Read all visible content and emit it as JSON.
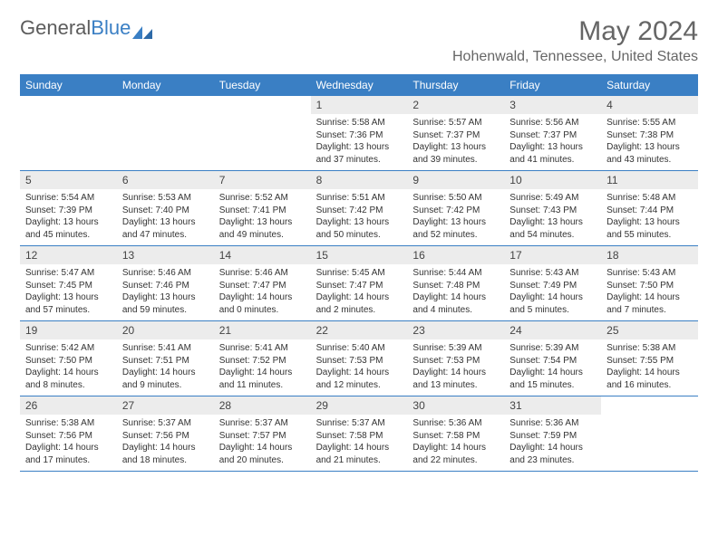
{
  "logo": {
    "text1": "General",
    "text2": "Blue"
  },
  "title": "May 2024",
  "location": "Hohenwald, Tennessee, United States",
  "colors": {
    "accent": "#3a7fc4",
    "daynum_bg": "#ececec",
    "text": "#333333"
  },
  "day_names": [
    "Sunday",
    "Monday",
    "Tuesday",
    "Wednesday",
    "Thursday",
    "Friday",
    "Saturday"
  ],
  "weeks": [
    [
      null,
      null,
      null,
      {
        "n": "1",
        "sr": "Sunrise: 5:58 AM",
        "ss": "Sunset: 7:36 PM",
        "d1": "Daylight: 13 hours",
        "d2": "and 37 minutes."
      },
      {
        "n": "2",
        "sr": "Sunrise: 5:57 AM",
        "ss": "Sunset: 7:37 PM",
        "d1": "Daylight: 13 hours",
        "d2": "and 39 minutes."
      },
      {
        "n": "3",
        "sr": "Sunrise: 5:56 AM",
        "ss": "Sunset: 7:37 PM",
        "d1": "Daylight: 13 hours",
        "d2": "and 41 minutes."
      },
      {
        "n": "4",
        "sr": "Sunrise: 5:55 AM",
        "ss": "Sunset: 7:38 PM",
        "d1": "Daylight: 13 hours",
        "d2": "and 43 minutes."
      }
    ],
    [
      {
        "n": "5",
        "sr": "Sunrise: 5:54 AM",
        "ss": "Sunset: 7:39 PM",
        "d1": "Daylight: 13 hours",
        "d2": "and 45 minutes."
      },
      {
        "n": "6",
        "sr": "Sunrise: 5:53 AM",
        "ss": "Sunset: 7:40 PM",
        "d1": "Daylight: 13 hours",
        "d2": "and 47 minutes."
      },
      {
        "n": "7",
        "sr": "Sunrise: 5:52 AM",
        "ss": "Sunset: 7:41 PM",
        "d1": "Daylight: 13 hours",
        "d2": "and 49 minutes."
      },
      {
        "n": "8",
        "sr": "Sunrise: 5:51 AM",
        "ss": "Sunset: 7:42 PM",
        "d1": "Daylight: 13 hours",
        "d2": "and 50 minutes."
      },
      {
        "n": "9",
        "sr": "Sunrise: 5:50 AM",
        "ss": "Sunset: 7:42 PM",
        "d1": "Daylight: 13 hours",
        "d2": "and 52 minutes."
      },
      {
        "n": "10",
        "sr": "Sunrise: 5:49 AM",
        "ss": "Sunset: 7:43 PM",
        "d1": "Daylight: 13 hours",
        "d2": "and 54 minutes."
      },
      {
        "n": "11",
        "sr": "Sunrise: 5:48 AM",
        "ss": "Sunset: 7:44 PM",
        "d1": "Daylight: 13 hours",
        "d2": "and 55 minutes."
      }
    ],
    [
      {
        "n": "12",
        "sr": "Sunrise: 5:47 AM",
        "ss": "Sunset: 7:45 PM",
        "d1": "Daylight: 13 hours",
        "d2": "and 57 minutes."
      },
      {
        "n": "13",
        "sr": "Sunrise: 5:46 AM",
        "ss": "Sunset: 7:46 PM",
        "d1": "Daylight: 13 hours",
        "d2": "and 59 minutes."
      },
      {
        "n": "14",
        "sr": "Sunrise: 5:46 AM",
        "ss": "Sunset: 7:47 PM",
        "d1": "Daylight: 14 hours",
        "d2": "and 0 minutes."
      },
      {
        "n": "15",
        "sr": "Sunrise: 5:45 AM",
        "ss": "Sunset: 7:47 PM",
        "d1": "Daylight: 14 hours",
        "d2": "and 2 minutes."
      },
      {
        "n": "16",
        "sr": "Sunrise: 5:44 AM",
        "ss": "Sunset: 7:48 PM",
        "d1": "Daylight: 14 hours",
        "d2": "and 4 minutes."
      },
      {
        "n": "17",
        "sr": "Sunrise: 5:43 AM",
        "ss": "Sunset: 7:49 PM",
        "d1": "Daylight: 14 hours",
        "d2": "and 5 minutes."
      },
      {
        "n": "18",
        "sr": "Sunrise: 5:43 AM",
        "ss": "Sunset: 7:50 PM",
        "d1": "Daylight: 14 hours",
        "d2": "and 7 minutes."
      }
    ],
    [
      {
        "n": "19",
        "sr": "Sunrise: 5:42 AM",
        "ss": "Sunset: 7:50 PM",
        "d1": "Daylight: 14 hours",
        "d2": "and 8 minutes."
      },
      {
        "n": "20",
        "sr": "Sunrise: 5:41 AM",
        "ss": "Sunset: 7:51 PM",
        "d1": "Daylight: 14 hours",
        "d2": "and 9 minutes."
      },
      {
        "n": "21",
        "sr": "Sunrise: 5:41 AM",
        "ss": "Sunset: 7:52 PM",
        "d1": "Daylight: 14 hours",
        "d2": "and 11 minutes."
      },
      {
        "n": "22",
        "sr": "Sunrise: 5:40 AM",
        "ss": "Sunset: 7:53 PM",
        "d1": "Daylight: 14 hours",
        "d2": "and 12 minutes."
      },
      {
        "n": "23",
        "sr": "Sunrise: 5:39 AM",
        "ss": "Sunset: 7:53 PM",
        "d1": "Daylight: 14 hours",
        "d2": "and 13 minutes."
      },
      {
        "n": "24",
        "sr": "Sunrise: 5:39 AM",
        "ss": "Sunset: 7:54 PM",
        "d1": "Daylight: 14 hours",
        "d2": "and 15 minutes."
      },
      {
        "n": "25",
        "sr": "Sunrise: 5:38 AM",
        "ss": "Sunset: 7:55 PM",
        "d1": "Daylight: 14 hours",
        "d2": "and 16 minutes."
      }
    ],
    [
      {
        "n": "26",
        "sr": "Sunrise: 5:38 AM",
        "ss": "Sunset: 7:56 PM",
        "d1": "Daylight: 14 hours",
        "d2": "and 17 minutes."
      },
      {
        "n": "27",
        "sr": "Sunrise: 5:37 AM",
        "ss": "Sunset: 7:56 PM",
        "d1": "Daylight: 14 hours",
        "d2": "and 18 minutes."
      },
      {
        "n": "28",
        "sr": "Sunrise: 5:37 AM",
        "ss": "Sunset: 7:57 PM",
        "d1": "Daylight: 14 hours",
        "d2": "and 20 minutes."
      },
      {
        "n": "29",
        "sr": "Sunrise: 5:37 AM",
        "ss": "Sunset: 7:58 PM",
        "d1": "Daylight: 14 hours",
        "d2": "and 21 minutes."
      },
      {
        "n": "30",
        "sr": "Sunrise: 5:36 AM",
        "ss": "Sunset: 7:58 PM",
        "d1": "Daylight: 14 hours",
        "d2": "and 22 minutes."
      },
      {
        "n": "31",
        "sr": "Sunrise: 5:36 AM",
        "ss": "Sunset: 7:59 PM",
        "d1": "Daylight: 14 hours",
        "d2": "and 23 minutes."
      },
      null
    ]
  ]
}
